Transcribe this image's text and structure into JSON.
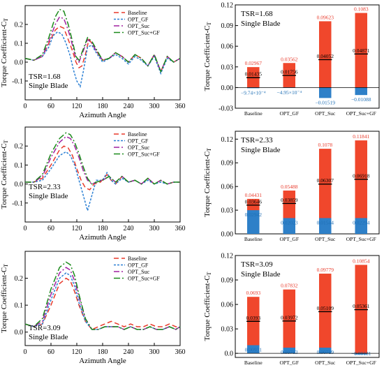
{
  "colors": {
    "baseline": "#e8392a",
    "opt_gf": "#2a7fd4",
    "opt_suc": "#a020a0",
    "opt_suc_gf": "#1a8a1a",
    "bar_red": "#f0472c",
    "bar_blue": "#2e80c8",
    "value_red": "#e8392a",
    "value_blue": "#1f6fb5"
  },
  "chart_data": [
    {
      "type": "line",
      "xlabel": "Azimuth Angle",
      "ylabel": "Torque Coefficient-C",
      "ylabel_sub": "T",
      "xlim": [
        0,
        360
      ],
      "ylim": [
        -0.2,
        0.3
      ],
      "xticks": [
        "0",
        "60",
        "120",
        "180",
        "240",
        "300",
        "360"
      ],
      "yticks": [
        "-0.1",
        "0.0",
        "0.1",
        "0.2"
      ],
      "annotation": [
        "TSR=1.68",
        "Single Blade"
      ],
      "legend": [
        "Baseline",
        "OPT_GF",
        "OPT_Suc",
        "OPT_Suc+GF"
      ],
      "series": [
        {
          "name": "Baseline",
          "x": [
            0,
            20,
            40,
            55,
            70,
            80,
            90,
            100,
            110,
            118,
            125,
            132,
            140,
            148,
            155,
            165,
            180,
            195,
            210,
            225,
            240,
            255,
            270,
            285,
            300,
            315,
            330,
            345,
            360
          ],
          "y": [
            0.02,
            0.01,
            0.03,
            0.1,
            0.17,
            0.19,
            0.18,
            0.12,
            0.06,
            0.0,
            -0.03,
            -0.02,
            0.04,
            0.12,
            0.1,
            0.06,
            0.01,
            0.02,
            0.05,
            0.03,
            0.0,
            0.04,
            0.02,
            -0.02,
            0.04,
            -0.05,
            0.03,
            0.0,
            0.02
          ]
        },
        {
          "name": "OPT_GF",
          "x": [
            0,
            20,
            40,
            55,
            65,
            75,
            85,
            95,
            105,
            112,
            120,
            128,
            135,
            145,
            155,
            165,
            180,
            195,
            210,
            225,
            240,
            255,
            270,
            285,
            300,
            315,
            330,
            345,
            360
          ],
          "y": [
            0.02,
            0.01,
            0.03,
            0.08,
            0.14,
            0.16,
            0.15,
            0.1,
            0.03,
            -0.04,
            -0.1,
            -0.13,
            -0.05,
            0.08,
            0.09,
            0.05,
            0.0,
            0.02,
            0.04,
            0.02,
            -0.01,
            0.03,
            0.01,
            -0.02,
            0.03,
            -0.06,
            0.02,
            0.0,
            0.02
          ]
        },
        {
          "name": "OPT_Suc",
          "x": [
            0,
            20,
            40,
            55,
            70,
            80,
            90,
            100,
            110,
            118,
            125,
            135,
            145,
            155,
            165,
            180,
            195,
            210,
            225,
            240,
            255,
            270,
            285,
            300,
            315,
            330,
            345,
            360
          ],
          "y": [
            0.02,
            0.01,
            0.03,
            0.11,
            0.2,
            0.24,
            0.23,
            0.17,
            0.09,
            0.02,
            0.0,
            0.06,
            0.12,
            0.1,
            0.06,
            0.01,
            0.02,
            0.05,
            0.03,
            0.0,
            0.04,
            0.02,
            -0.02,
            0.04,
            -0.05,
            0.03,
            0.0,
            0.02
          ]
        },
        {
          "name": "OPT_Suc+GF",
          "x": [
            0,
            20,
            40,
            55,
            70,
            80,
            90,
            100,
            110,
            118,
            125,
            135,
            145,
            155,
            165,
            180,
            195,
            210,
            225,
            240,
            255,
            270,
            285,
            300,
            315,
            330,
            345,
            360
          ],
          "y": [
            0.02,
            0.01,
            0.04,
            0.13,
            0.24,
            0.28,
            0.27,
            0.2,
            0.11,
            0.03,
            0.01,
            0.07,
            0.13,
            0.11,
            0.07,
            0.01,
            0.02,
            0.05,
            0.03,
            0.0,
            0.04,
            0.02,
            -0.02,
            0.04,
            -0.05,
            0.03,
            0.0,
            0.02
          ]
        }
      ]
    },
    {
      "type": "bar",
      "ylabel": "Torque Coefficient-C",
      "ylabel_sub": "T",
      "ylim": [
        -0.03,
        0.12
      ],
      "yticks": [
        "-0.03",
        "0.00",
        "0.03",
        "0.06",
        "0.09",
        "0.12"
      ],
      "annotation": [
        "TSR=1.68",
        "Single Blade"
      ],
      "categories": [
        "Baseline",
        "OPT_GF",
        "OPT_Suc",
        "OPT_Suc+GF"
      ],
      "total": [
        0.02967,
        0.03562,
        0.09623,
        0.1083
      ],
      "mean": [
        0.01435,
        0.01756,
        0.04052,
        0.04871
      ],
      "lower": [
        -0.000974,
        -0.000495,
        -0.01519,
        -0.01088
      ],
      "total_labels": [
        "0.02967",
        "0.03562",
        "0.09623",
        "0.1083"
      ],
      "mean_labels": [
        "0.01435",
        "0.01756",
        "0.04052",
        "0.04871"
      ],
      "lower_labels": [
        "−9.74×10⁻⁴",
        "−4.95×10⁻⁴",
        "−0.01519",
        "−0.01088"
      ]
    },
    {
      "type": "line",
      "xlabel": "Azimuth Angle",
      "ylabel": "Torque Coefficient-C",
      "ylabel_sub": "T",
      "xlim": [
        0,
        360
      ],
      "ylim": [
        -0.2,
        0.3
      ],
      "xticks": [
        "0",
        "60",
        "120",
        "180",
        "240",
        "300",
        "360"
      ],
      "yticks": [
        "-0.1",
        "0.0",
        "0.1",
        "0.2"
      ],
      "annotation": [
        "TSR=2.33",
        "Single Blade"
      ],
      "legend": [
        "Baseline",
        "OPT_GF",
        "OPT_Suc",
        "OPT_Suc+GF"
      ],
      "series": [
        {
          "name": "Baseline",
          "x": [
            0,
            20,
            40,
            60,
            80,
            90,
            100,
            110,
            120,
            130,
            140,
            150,
            160,
            175,
            190,
            200,
            210,
            225,
            240,
            255,
            270,
            285,
            300,
            315,
            330,
            345,
            360
          ],
          "y": [
            0.01,
            0.01,
            0.03,
            0.1,
            0.18,
            0.2,
            0.19,
            0.15,
            0.08,
            0.02,
            -0.02,
            -0.03,
            0.0,
            0.01,
            0.05,
            0.02,
            0.0,
            0.04,
            0.01,
            0.02,
            0.0,
            0.03,
            0.0,
            0.02,
            0.0,
            0.01,
            0.01
          ]
        },
        {
          "name": "OPT_GF",
          "x": [
            0,
            20,
            40,
            60,
            80,
            95,
            105,
            115,
            125,
            135,
            145,
            155,
            165,
            180,
            190,
            200,
            210,
            225,
            240,
            255,
            270,
            285,
            300,
            315,
            330,
            345,
            360
          ],
          "y": [
            0.01,
            0.01,
            0.02,
            0.08,
            0.15,
            0.17,
            0.15,
            0.1,
            0.02,
            -0.06,
            -0.14,
            -0.06,
            0.02,
            0.02,
            0.06,
            0.02,
            0.0,
            0.03,
            0.01,
            0.02,
            0.0,
            0.02,
            0.0,
            0.01,
            0.0,
            0.01,
            0.01
          ]
        },
        {
          "name": "OPT_Suc",
          "x": [
            0,
            20,
            40,
            60,
            80,
            95,
            105,
            115,
            125,
            135,
            145,
            155,
            165,
            180,
            195,
            210,
            225,
            240,
            255,
            270,
            285,
            300,
            315,
            330,
            345,
            360
          ],
          "y": [
            0.01,
            0.01,
            0.04,
            0.14,
            0.22,
            0.25,
            0.24,
            0.2,
            0.14,
            0.07,
            0.02,
            0.0,
            0.01,
            0.02,
            0.04,
            0.01,
            0.04,
            0.01,
            0.02,
            0.0,
            0.03,
            0.0,
            0.02,
            0.0,
            0.01,
            0.01
          ]
        },
        {
          "name": "OPT_Suc+GF",
          "x": [
            0,
            20,
            40,
            60,
            80,
            95,
            105,
            115,
            125,
            135,
            145,
            155,
            165,
            180,
            195,
            210,
            225,
            240,
            255,
            270,
            285,
            300,
            315,
            330,
            345,
            360
          ],
          "y": [
            0.01,
            0.01,
            0.05,
            0.16,
            0.24,
            0.27,
            0.26,
            0.22,
            0.16,
            0.09,
            0.03,
            0.0,
            0.01,
            0.02,
            0.04,
            0.01,
            0.04,
            0.01,
            0.02,
            0.0,
            0.03,
            0.0,
            0.02,
            0.0,
            0.01,
            0.01
          ]
        }
      ]
    },
    {
      "type": "bar",
      "ylabel": "Torque Coefficient-C",
      "ylabel_sub": "T",
      "ylim": [
        0.0,
        0.13
      ],
      "yticks": [
        "0.00",
        "0.03",
        "0.06",
        "0.09",
        "0.12"
      ],
      "annotation": [
        "TSR=2.33",
        "Single Blade"
      ],
      "categories": [
        "Baseline",
        "OPT_GF",
        "OPT_Suc",
        "OPT_Suc+GF"
      ],
      "total": [
        0.04431,
        0.05488,
        0.1078,
        0.11841
      ],
      "mean": [
        0.03646,
        0.03859,
        0.06307,
        0.06918
      ],
      "lower": [
        0.03,
        0.02,
        0.02,
        0.02
      ],
      "total_labels": [
        "0.04431",
        "0.05488",
        "0.1078",
        "0.11841"
      ],
      "mean_labels": [
        "0.03646",
        "0.03859",
        "0.06307",
        "0.06918"
      ],
      "lower_labels": [
        "0.02942",
        "0.02023",
        "0.01544",
        "0.02294"
      ]
    },
    {
      "type": "line",
      "xlabel": "Azimuth Angle",
      "ylabel": "Torque Coefficient-C",
      "ylabel_sub": "T",
      "xlim": [
        0,
        360
      ],
      "ylim": [
        -0.05,
        0.3
      ],
      "xticks": [
        "0",
        "60",
        "120",
        "180",
        "240",
        "300",
        "360"
      ],
      "yticks": [
        "0.0",
        "0.1",
        "0.2"
      ],
      "annotation": [
        "TSR=3.09",
        "Single Blade"
      ],
      "legend": [
        "Baseline",
        "OPT_GF",
        "OPT_Suc",
        "OPT_Suc+GF"
      ],
      "series": [
        {
          "name": "Baseline",
          "x": [
            0,
            20,
            40,
            60,
            80,
            95,
            105,
            115,
            125,
            140,
            155,
            170,
            185,
            200,
            215,
            230,
            245,
            260,
            275,
            290,
            305,
            320,
            335,
            350,
            360
          ],
          "y": [
            0.03,
            0.02,
            0.03,
            0.1,
            0.18,
            0.2,
            0.19,
            0.15,
            0.1,
            0.04,
            0.01,
            0.02,
            0.03,
            0.04,
            0.03,
            0.02,
            0.03,
            0.02,
            0.02,
            0.03,
            0.02,
            0.02,
            0.03,
            0.02,
            0.02
          ]
        },
        {
          "name": "OPT_GF",
          "x": [
            0,
            20,
            40,
            60,
            80,
            95,
            105,
            115,
            125,
            140,
            155,
            170,
            185,
            200,
            215,
            230,
            245,
            260,
            275,
            290,
            305,
            320,
            335,
            350,
            360
          ],
          "y": [
            0.03,
            0.02,
            0.03,
            0.12,
            0.2,
            0.22,
            0.21,
            0.17,
            0.11,
            0.04,
            0.01,
            0.01,
            0.02,
            0.02,
            0.02,
            0.01,
            0.02,
            0.01,
            0.01,
            0.02,
            0.01,
            0.01,
            0.02,
            0.01,
            0.02
          ]
        },
        {
          "name": "OPT_Suc",
          "x": [
            0,
            20,
            40,
            60,
            80,
            95,
            105,
            115,
            125,
            140,
            155,
            170,
            185,
            200,
            215,
            230,
            245,
            260,
            275,
            290,
            305,
            320,
            335,
            350,
            360
          ],
          "y": [
            0.03,
            0.02,
            0.04,
            0.14,
            0.22,
            0.24,
            0.23,
            0.19,
            0.13,
            0.05,
            0.01,
            0.01,
            0.02,
            0.02,
            0.02,
            0.01,
            0.02,
            0.01,
            0.01,
            0.02,
            0.01,
            0.01,
            0.02,
            0.01,
            0.02
          ]
        },
        {
          "name": "OPT_Suc+GF",
          "x": [
            0,
            20,
            40,
            60,
            80,
            95,
            105,
            115,
            125,
            140,
            155,
            170,
            185,
            200,
            215,
            230,
            245,
            260,
            275,
            290,
            305,
            320,
            335,
            350,
            360
          ],
          "y": [
            0.03,
            0.02,
            0.05,
            0.16,
            0.24,
            0.26,
            0.25,
            0.21,
            0.14,
            0.05,
            0.01,
            0.01,
            0.02,
            0.02,
            0.02,
            0.01,
            0.02,
            0.01,
            0.01,
            0.02,
            0.01,
            0.01,
            0.02,
            0.01,
            0.02
          ]
        }
      ]
    },
    {
      "type": "bar",
      "ylabel": "Torque Coefficient-C",
      "ylabel_sub": "T",
      "ylim": [
        -0.005,
        0.12
      ],
      "yticks": [
        "0.0",
        "0.03",
        "0.06",
        "0.09",
        "0.12"
      ],
      "annotation": [
        "TSR=3.09",
        "Single Blade"
      ],
      "categories": [
        "Baseline",
        "OPT_GF",
        "OPT_Suc",
        "OPT_Suc+GF"
      ],
      "total": [
        0.0693,
        0.07832,
        0.09779,
        0.10854
      ],
      "mean": [
        0.0393,
        0.03972,
        0.05109,
        0.05361
      ],
      "lower": [
        0.01,
        0.007,
        0.007,
        -0.00131
      ],
      "total_labels": [
        "0.0693",
        "0.07832",
        "0.09779",
        "0.10854"
      ],
      "mean_labels": [
        "0.0393",
        "0.03972",
        "0.05109",
        "0.05361"
      ],
      "lower_labels": [
        "0.00931",
        "0.00713",
        "0.00719",
        "−0.00131"
      ]
    }
  ]
}
